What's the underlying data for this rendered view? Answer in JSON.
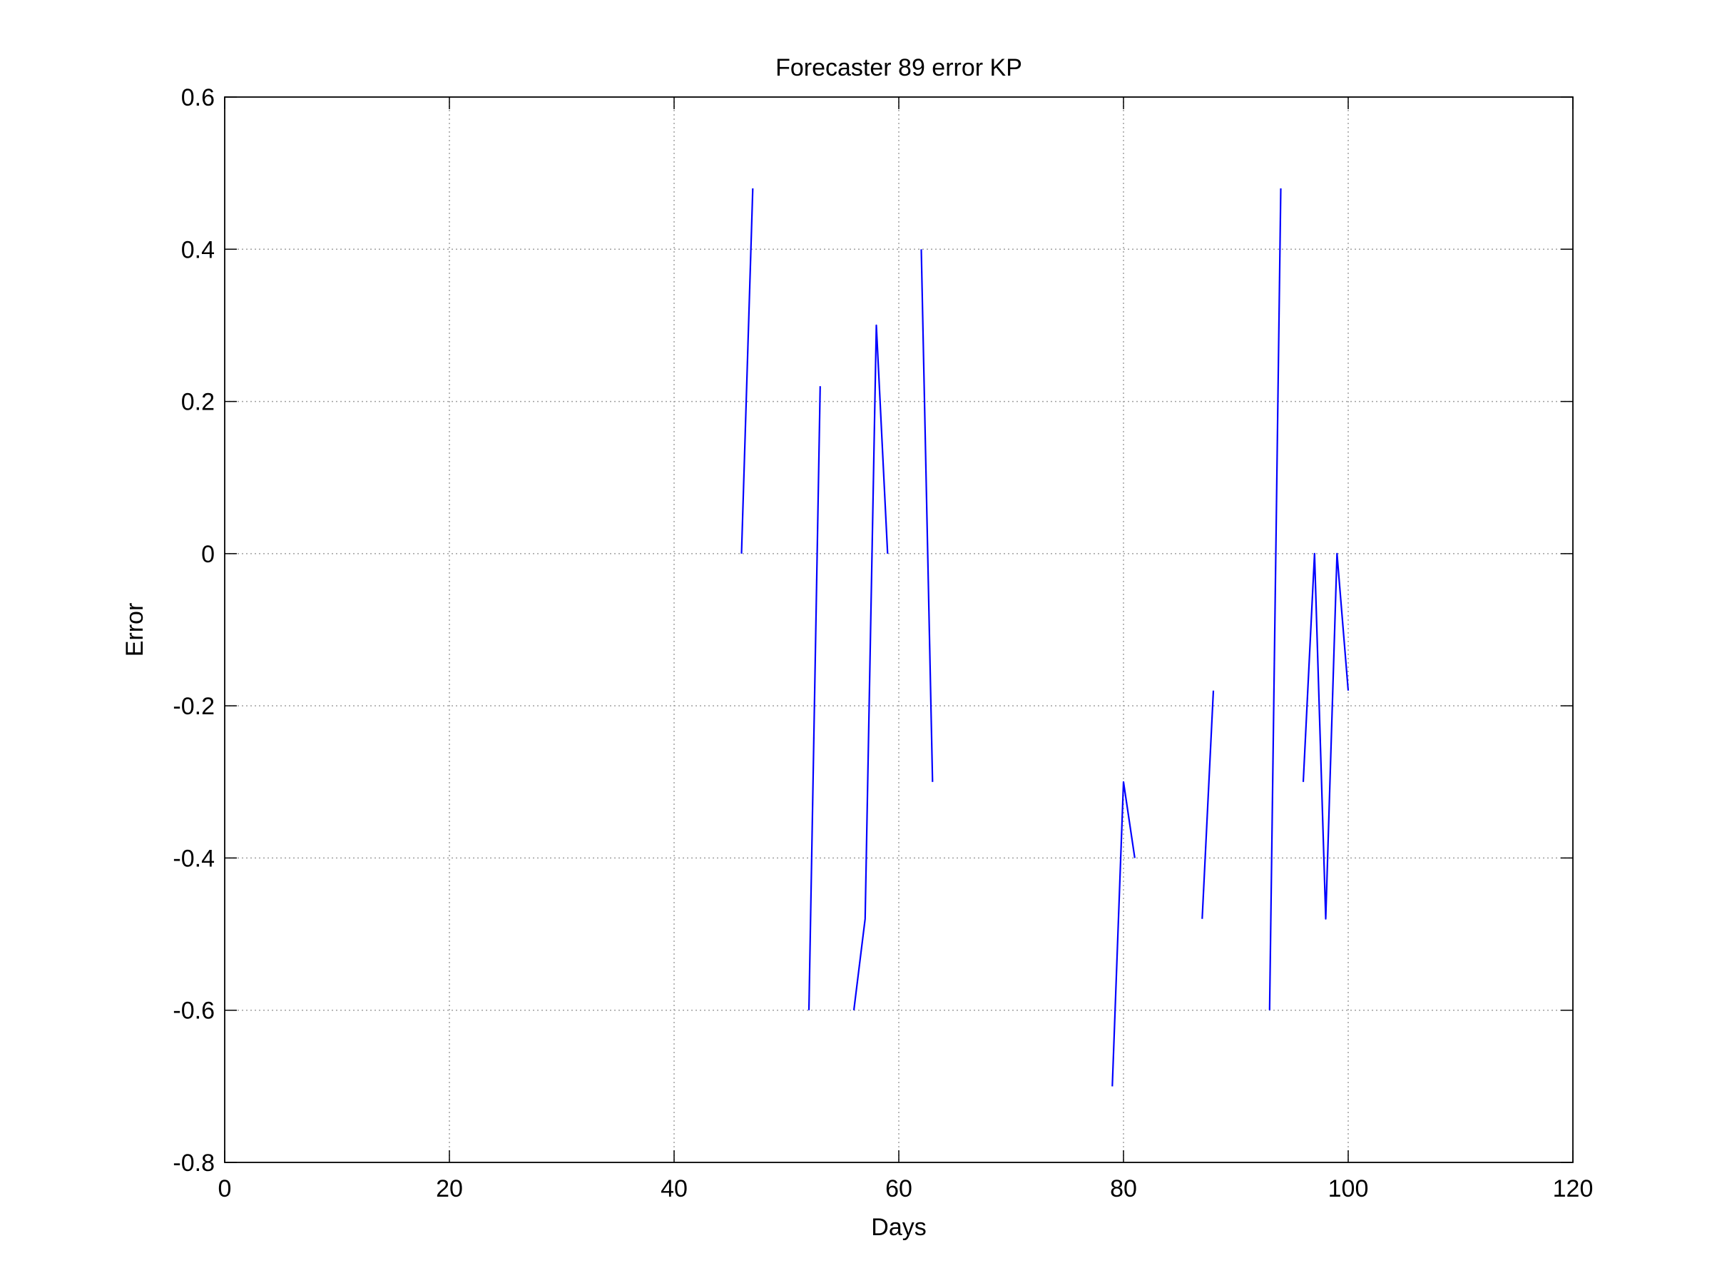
{
  "chart_data": {
    "type": "line",
    "title": "Forecaster 89 error  KP",
    "xlabel": "Days",
    "ylabel": "Error",
    "xlim": [
      0,
      120
    ],
    "ylim": [
      -0.8,
      0.6
    ],
    "xticks": [
      0,
      20,
      40,
      60,
      80,
      100,
      120
    ],
    "xtick_labels": [
      "0",
      "20",
      "40",
      "60",
      "80",
      "100",
      "120"
    ],
    "yticks": [
      -0.8,
      -0.6,
      -0.4,
      -0.2,
      0,
      0.2,
      0.4,
      0.6
    ],
    "ytick_labels": [
      "-0.8",
      "-0.6",
      "-0.4",
      "-0.2",
      "0",
      "0.2",
      "0.4",
      "0.6"
    ],
    "grid": true,
    "legend": "none",
    "series": [
      {
        "color": "#0000ff",
        "segments": [
          [
            [
              46,
              0.0
            ],
            [
              47,
              0.48
            ]
          ],
          [
            [
              52,
              -0.6
            ],
            [
              53,
              0.22
            ]
          ],
          [
            [
              56,
              -0.6
            ],
            [
              57,
              -0.48
            ],
            [
              58,
              0.3
            ],
            [
              59,
              0.0
            ]
          ],
          [
            [
              62,
              0.4
            ],
            [
              63,
              -0.3
            ]
          ],
          [
            [
              79,
              -0.7
            ],
            [
              80,
              -0.3
            ],
            [
              81,
              -0.4
            ]
          ],
          [
            [
              87,
              -0.48
            ],
            [
              88,
              -0.18
            ]
          ],
          [
            [
              93,
              -0.6
            ],
            [
              94,
              0.48
            ]
          ],
          [
            [
              96,
              -0.3
            ],
            [
              97,
              0.0
            ],
            [
              98,
              -0.48
            ],
            [
              99,
              0.0
            ],
            [
              100,
              -0.18
            ]
          ]
        ]
      }
    ]
  }
}
